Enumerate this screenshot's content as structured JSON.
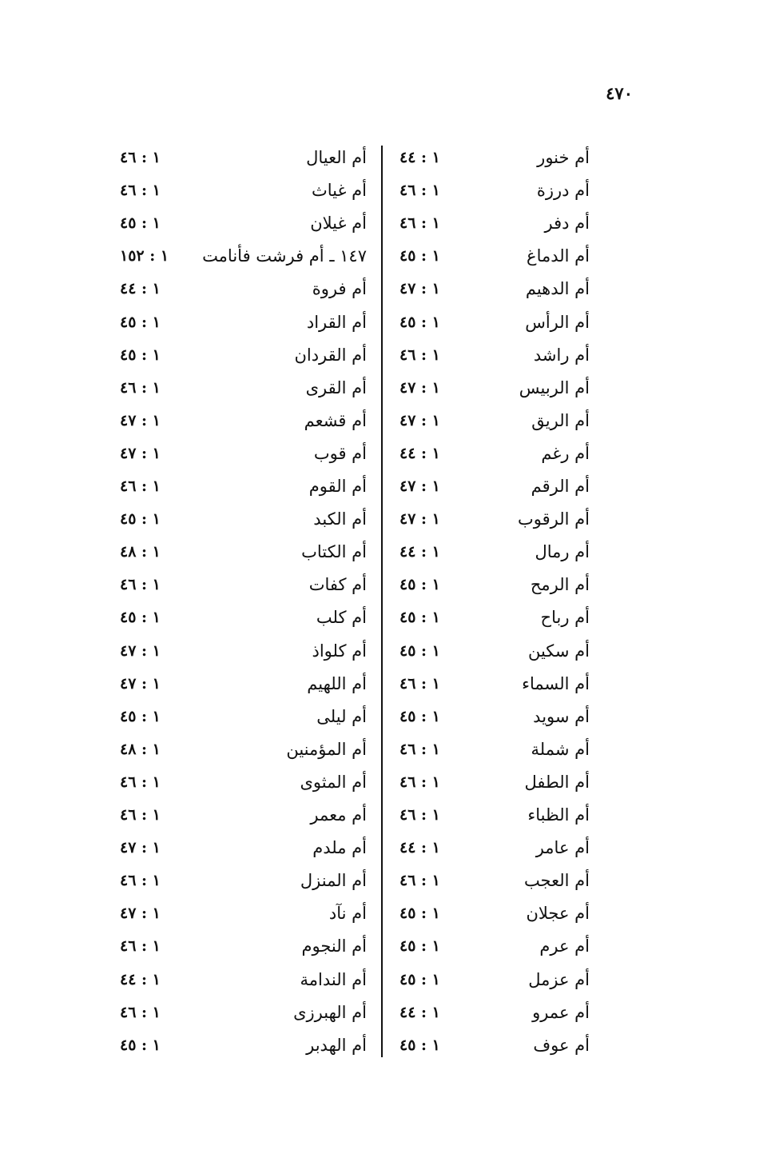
{
  "page_number": "٤٧٠",
  "right_column": [
    {
      "name": "أم خنور",
      "ref": "١ : ٤٤"
    },
    {
      "name": "أم درزة",
      "ref": "١ : ٤٦"
    },
    {
      "name": "أم دفر",
      "ref": "١ : ٤٦"
    },
    {
      "name": "أم الدماغ",
      "ref": "١ : ٤٥"
    },
    {
      "name": "أم الدهيم",
      "ref": "١ : ٤٧"
    },
    {
      "name": "أم الرأس",
      "ref": "١ : ٤٥"
    },
    {
      "name": "أم راشد",
      "ref": "١ : ٤٦"
    },
    {
      "name": "أم الربيس",
      "ref": "١ : ٤٧"
    },
    {
      "name": "أم الريق",
      "ref": "١ : ٤٧"
    },
    {
      "name": "أم رغم",
      "ref": "١ : ٤٤"
    },
    {
      "name": "أم الرقم",
      "ref": "١ : ٤٧"
    },
    {
      "name": "أم الرقوب",
      "ref": "١ : ٤٧"
    },
    {
      "name": "أم رمال",
      "ref": "١ : ٤٤"
    },
    {
      "name": "أم الرمح",
      "ref": "١ : ٤٥"
    },
    {
      "name": "أم رباح",
      "ref": "١ : ٤٥"
    },
    {
      "name": "أم سكين",
      "ref": "١ : ٤٥"
    },
    {
      "name": "أم السماء",
      "ref": "١ : ٤٦"
    },
    {
      "name": "أم سويد",
      "ref": "١ : ٤٥"
    },
    {
      "name": "أم شملة",
      "ref": "١ : ٤٦"
    },
    {
      "name": "أم الطفل",
      "ref": "١ : ٤٦"
    },
    {
      "name": "أم الظباء",
      "ref": "١ : ٤٦"
    },
    {
      "name": "أم عامر",
      "ref": "١ : ٤٤"
    },
    {
      "name": "أم العجب",
      "ref": "١ : ٤٦"
    },
    {
      "name": "أم عجلان",
      "ref": "١ : ٤٥"
    },
    {
      "name": "أم عرم",
      "ref": "١ : ٤٥"
    },
    {
      "name": "أم عزمل",
      "ref": "١ : ٤٥"
    },
    {
      "name": "أم عمرو",
      "ref": "١ : ٤٤"
    },
    {
      "name": "أم عوف",
      "ref": "١ : ٤٥"
    }
  ],
  "left_column": [
    {
      "name": "أم العيال",
      "ref": "١ : ٤٦"
    },
    {
      "name": "أم غياث",
      "ref": "١ : ٤٦"
    },
    {
      "name": "أم غيلان",
      "ref": "١ : ٤٥"
    },
    {
      "name": "١٤٧ ـ أم فرشت فأنامت",
      "ref": "١ : ١٥٢"
    },
    {
      "name": "أم فروة",
      "ref": "١ : ٤٤"
    },
    {
      "name": "أم القراد",
      "ref": "١ : ٤٥"
    },
    {
      "name": "أم القردان",
      "ref": "١ : ٤٥"
    },
    {
      "name": "أم القرى",
      "ref": "١ : ٤٦"
    },
    {
      "name": "أم قشعم",
      "ref": "١ : ٤٧"
    },
    {
      "name": "أم قوب",
      "ref": "١ : ٤٧"
    },
    {
      "name": "أم القوم",
      "ref": "١ : ٤٦"
    },
    {
      "name": "أم الكبد",
      "ref": "١ : ٤٥"
    },
    {
      "name": "أم الكتاب",
      "ref": "١ : ٤٨"
    },
    {
      "name": "أم كفات",
      "ref": "١ : ٤٦"
    },
    {
      "name": "أم كلب",
      "ref": "١ : ٤٥"
    },
    {
      "name": "أم كلواذ",
      "ref": "١ : ٤٧"
    },
    {
      "name": "أم اللهيم",
      "ref": "١ : ٤٧"
    },
    {
      "name": "أم ليلى",
      "ref": "١ : ٤٥"
    },
    {
      "name": "أم المؤمنين",
      "ref": "١ : ٤٨"
    },
    {
      "name": "أم المثوى",
      "ref": "١ : ٤٦"
    },
    {
      "name": "أم معمر",
      "ref": "١ : ٤٦"
    },
    {
      "name": "أم ملدم",
      "ref": "١ : ٤٧"
    },
    {
      "name": "أم المنزل",
      "ref": "١ : ٤٦"
    },
    {
      "name": "أم نآد",
      "ref": "١ : ٤٧"
    },
    {
      "name": "أم النجوم",
      "ref": "١ : ٤٦"
    },
    {
      "name": "أم الندامة",
      "ref": "١ : ٤٤"
    },
    {
      "name": "أم الهبرزى",
      "ref": "١ : ٤٦"
    },
    {
      "name": "أم الهدبر",
      "ref": "١ : ٤٥"
    }
  ]
}
